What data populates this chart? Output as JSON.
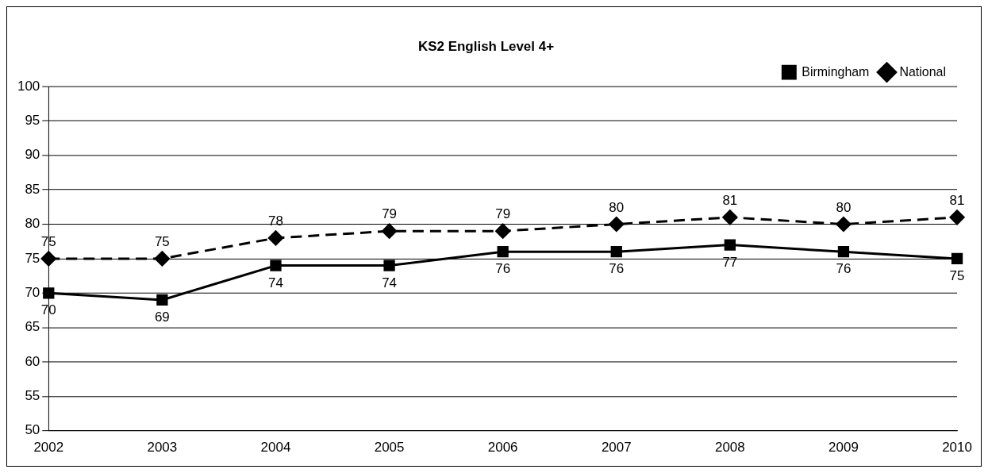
{
  "chart_data": {
    "type": "line",
    "title": "KS2 English Level 4+",
    "categories": [
      "2002",
      "2003",
      "2004",
      "2005",
      "2006",
      "2007",
      "2008",
      "2009",
      "2010"
    ],
    "series": [
      {
        "name": "Birmingham",
        "color": "#000000",
        "marker": "square",
        "line_style": "solid",
        "values": [
          70,
          69,
          74,
          74,
          76,
          76,
          77,
          76,
          75
        ]
      },
      {
        "name": "National",
        "color": "#000000",
        "marker": "diamond",
        "line_style": "dashed",
        "values": [
          75,
          75,
          78,
          79,
          79,
          80,
          81,
          80,
          81
        ]
      }
    ],
    "ylim": [
      50,
      100
    ],
    "yticks": [
      50,
      55,
      60,
      65,
      70,
      75,
      80,
      85,
      90,
      95,
      100
    ],
    "grid": "y",
    "legend": "top right",
    "data_labels": true
  }
}
